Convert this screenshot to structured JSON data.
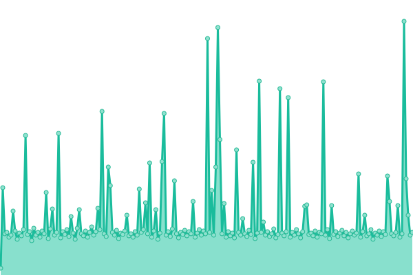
{
  "chart_data": {
    "type": "area",
    "title": "",
    "xlabel": "",
    "ylabel": "",
    "ylim": [
      0,
      400
    ],
    "grid": false,
    "legend": "none",
    "colors": {
      "line": "#1abc9c",
      "area": "#88e0cd",
      "marker_fill": "#8fe1cf",
      "marker_stroke": "#24b894"
    },
    "values": [
      10,
      127,
      60,
      62,
      55,
      58,
      93,
      64,
      52,
      61,
      57,
      66,
      203,
      59,
      63,
      50,
      68,
      58,
      62,
      55,
      64,
      60,
      120,
      53,
      67,
      96,
      58,
      62,
      206,
      54,
      63,
      59,
      66,
      56,
      85,
      61,
      52,
      68,
      95,
      60,
      57,
      64,
      55,
      62,
      70,
      58,
      63,
      97,
      66,
      238,
      60,
      56,
      157,
      130,
      62,
      58,
      65,
      53,
      61,
      59,
      64,
      87,
      57,
      60,
      55,
      63,
      58,
      125,
      62,
      66,
      105,
      60,
      163,
      55,
      64,
      95,
      52,
      61,
      165,
      235,
      58,
      63,
      56,
      67,
      137,
      60,
      54,
      62,
      59,
      65,
      57,
      63,
      60,
      107,
      55,
      61,
      66,
      58,
      64,
      60,
      344,
      62,
      123,
      58,
      157,
      360,
      197,
      60,
      104,
      55,
      63,
      57,
      61,
      54,
      182,
      62,
      58,
      82,
      60,
      56,
      65,
      59,
      164,
      53,
      61,
      282,
      62,
      77,
      58,
      63,
      56,
      60,
      67,
      54,
      59,
      271,
      61,
      57,
      63,
      258,
      55,
      62,
      58,
      66,
      60,
      54,
      63,
      100,
      102,
      59,
      61,
      57,
      64,
      55,
      62,
      60,
      281,
      58,
      66,
      53,
      101,
      59,
      63,
      56,
      61,
      65,
      57,
      62,
      54,
      60,
      64,
      58,
      61,
      147,
      55,
      63,
      87,
      57,
      60,
      66,
      52,
      61,
      58,
      64,
      56,
      63,
      59,
      144,
      107,
      60,
      57,
      62,
      101,
      55,
      60,
      369,
      140,
      87,
      58,
      62
    ]
  }
}
